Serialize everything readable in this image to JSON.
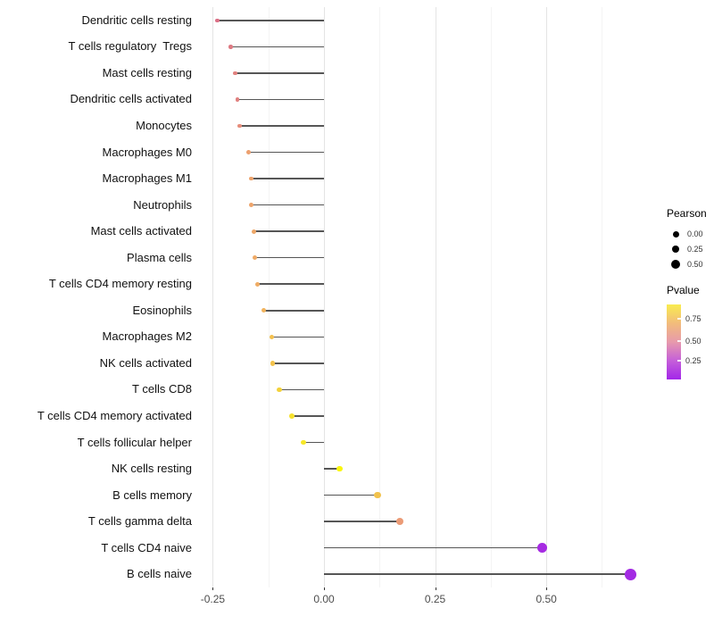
{
  "chart_data": {
    "type": "scatter",
    "variant": "horizontal-lollipop",
    "title": "",
    "xlabel": "",
    "ylabel": "",
    "categories": [
      "Dendritic cells resting",
      "T cells regulatory  Tregs",
      "Mast cells resting",
      "Dendritic cells activated",
      "Monocytes",
      "Macrophages M0",
      "Macrophages M1",
      "Neutrophils",
      "Mast cells activated",
      "Plasma cells",
      "T cells CD4 memory resting",
      "Eosinophils",
      "Macrophages M2",
      "NK cells activated",
      "T cells CD8",
      "T cells CD4 memory activated",
      "T cells follicular helper",
      "NK cells resting",
      "B cells memory",
      "T cells gamma delta",
      "T cells CD4 naive",
      "B cells naive"
    ],
    "values": [
      -0.24,
      -0.21,
      -0.2,
      -0.195,
      -0.19,
      -0.17,
      -0.163,
      -0.163,
      -0.157,
      -0.155,
      -0.15,
      -0.135,
      -0.117,
      -0.115,
      -0.1,
      -0.072,
      -0.046,
      0.035,
      0.12,
      0.17,
      0.49,
      0.69
    ],
    "point_colors": [
      "#db7086",
      "#dd7982",
      "#e28280",
      "#e18180",
      "#e68d7b",
      "#eca06f",
      "#eda36c",
      "#eda46b",
      "#eea768",
      "#efaa66",
      "#efac64",
      "#f1b35c",
      "#f3c04e",
      "#f3c24c",
      "#f3d23b",
      "#f6e12d",
      "#f7e828",
      "#faf60d",
      "#f1c24d",
      "#eb9b76",
      "#a62be2",
      "#a32be3"
    ],
    "baseline": 0,
    "xlim": [
      -0.283,
      0.867
    ],
    "x_ticks": [
      "-0.25",
      "0.00",
      "0.25",
      "0.50"
    ],
    "x_tick_values": [
      -0.25,
      0.0,
      0.25,
      0.5
    ],
    "x_minor_grid_values": [
      -0.125,
      0.125,
      0.375,
      0.625
    ],
    "grid": "vertical major+minor, no panel border",
    "legend_position": "right",
    "size_legend": {
      "title": "Pearson",
      "items": [
        {
          "label": "0.00",
          "value": 0.0
        },
        {
          "label": "0.25",
          "value": 0.25
        },
        {
          "label": "0.50",
          "value": 0.5
        }
      ]
    },
    "color_legend": {
      "title": "Pvalue",
      "tick_labels": [
        "0.75",
        "0.50",
        "0.25"
      ],
      "gradient_top_to_bottom": [
        "#f9ec4f",
        "#f2bc7b",
        "#e79aac",
        "#c55fd9",
        "#a326e9"
      ]
    },
    "colors_note": {
      "stem_color": "#3f3f3f",
      "major_grid": "#e4e4e4",
      "minor_grid": "#f4f4f4",
      "axis_text": "#4d4d4d"
    }
  }
}
